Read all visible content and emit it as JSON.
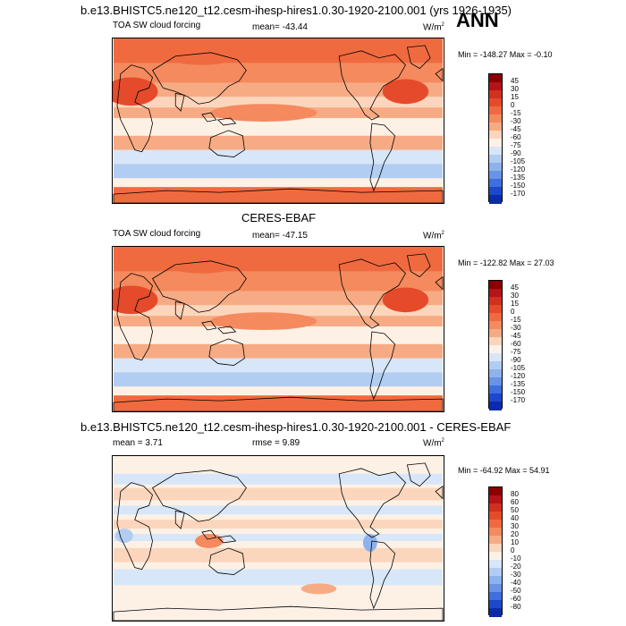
{
  "title": "b.e13.BHISTC5.ne120_t12.cesm-ihesp-hires1.0.30-1920-2100.001 (yrs 1926-1935)",
  "season": "ANN",
  "panels": [
    {
      "title": "",
      "variable": "TOA SW cloud forcing",
      "stat1": "mean= -43.44",
      "stat2": "",
      "units": "W/m",
      "units_sup": "2",
      "minmax": "Min = -148.27 Max =  -0.10"
    },
    {
      "title": "CERES-EBAF",
      "variable": "TOA SW cloud forcing",
      "stat1": "mean= -47.15",
      "stat2": "",
      "units": "W/m",
      "units_sup": "2",
      "minmax": "Min = -122.82 Max =  27.03"
    },
    {
      "title": "b.e13.BHISTC5.ne120_t12.cesm-ihesp-hires1.0.30-1920-2100.001 - CERES-EBAF",
      "variable": "mean =   3.71",
      "stat1": "rmse =   9.89",
      "stat2": "",
      "units": "W/m",
      "units_sup": "2",
      "minmax": "Min = -64.92 Max =  54.91"
    }
  ],
  "colorbars": {
    "absolute": {
      "labels": [
        "45",
        "30",
        "15",
        "0",
        "-15",
        "-30",
        "-45",
        "-60",
        "-75",
        "-90",
        "-105",
        "-120",
        "-135",
        "-150",
        "-170"
      ],
      "colors": [
        "#8b0000",
        "#b5131a",
        "#d32f20",
        "#e54b2b",
        "#f06a3f",
        "#f48a5e",
        "#f7ab84",
        "#fbd6bd",
        "#fdf1e6",
        "#d7e6f8",
        "#b2cdf2",
        "#8eb2ec",
        "#6993e6",
        "#3f6fdd",
        "#1d48cc",
        "#0b2ca8"
      ]
    },
    "difference": {
      "labels": [
        "80",
        "60",
        "50",
        "40",
        "30",
        "20",
        "10",
        "0",
        "-10",
        "-20",
        "-30",
        "-40",
        "-50",
        "-60",
        "-80"
      ],
      "colors": [
        "#8b0000",
        "#b5131a",
        "#d32f20",
        "#e54b2b",
        "#f06a3f",
        "#f48a5e",
        "#f7ab84",
        "#fbd6bd",
        "#fdf1e6",
        "#d7e6f8",
        "#b2cdf2",
        "#8eb2ec",
        "#6993e6",
        "#3f6fdd",
        "#1d48cc",
        "#0b2ca8"
      ]
    }
  },
  "chart_data": [
    {
      "type": "heatmap",
      "title": "TOA SW cloud forcing",
      "units": "W/m2",
      "mean": -43.44,
      "min": -148.27,
      "max": -0.1,
      "contour_levels": [
        45,
        30,
        15,
        0,
        -15,
        -30,
        -45,
        -60,
        -75,
        -90,
        -105,
        -120,
        -135,
        -150,
        -170
      ]
    },
    {
      "type": "heatmap",
      "title": "CERES-EBAF TOA SW cloud forcing",
      "units": "W/m2",
      "mean": -47.15,
      "min": -122.82,
      "max": 27.03,
      "contour_levels": [
        45,
        30,
        15,
        0,
        -15,
        -30,
        -45,
        -60,
        -75,
        -90,
        -105,
        -120,
        -135,
        -150,
        -170
      ]
    },
    {
      "type": "heatmap",
      "title": "b.e13.BHISTC5.ne120_t12.cesm-ihesp-hires1.0.30-1920-2100.001 - CERES-EBAF",
      "units": "W/m2",
      "mean": 3.71,
      "rmse": 9.89,
      "min": -64.92,
      "max": 54.91,
      "contour_levels": [
        80,
        60,
        50,
        40,
        30,
        20,
        10,
        0,
        -10,
        -20,
        -30,
        -40,
        -50,
        -60,
        -80
      ]
    }
  ]
}
